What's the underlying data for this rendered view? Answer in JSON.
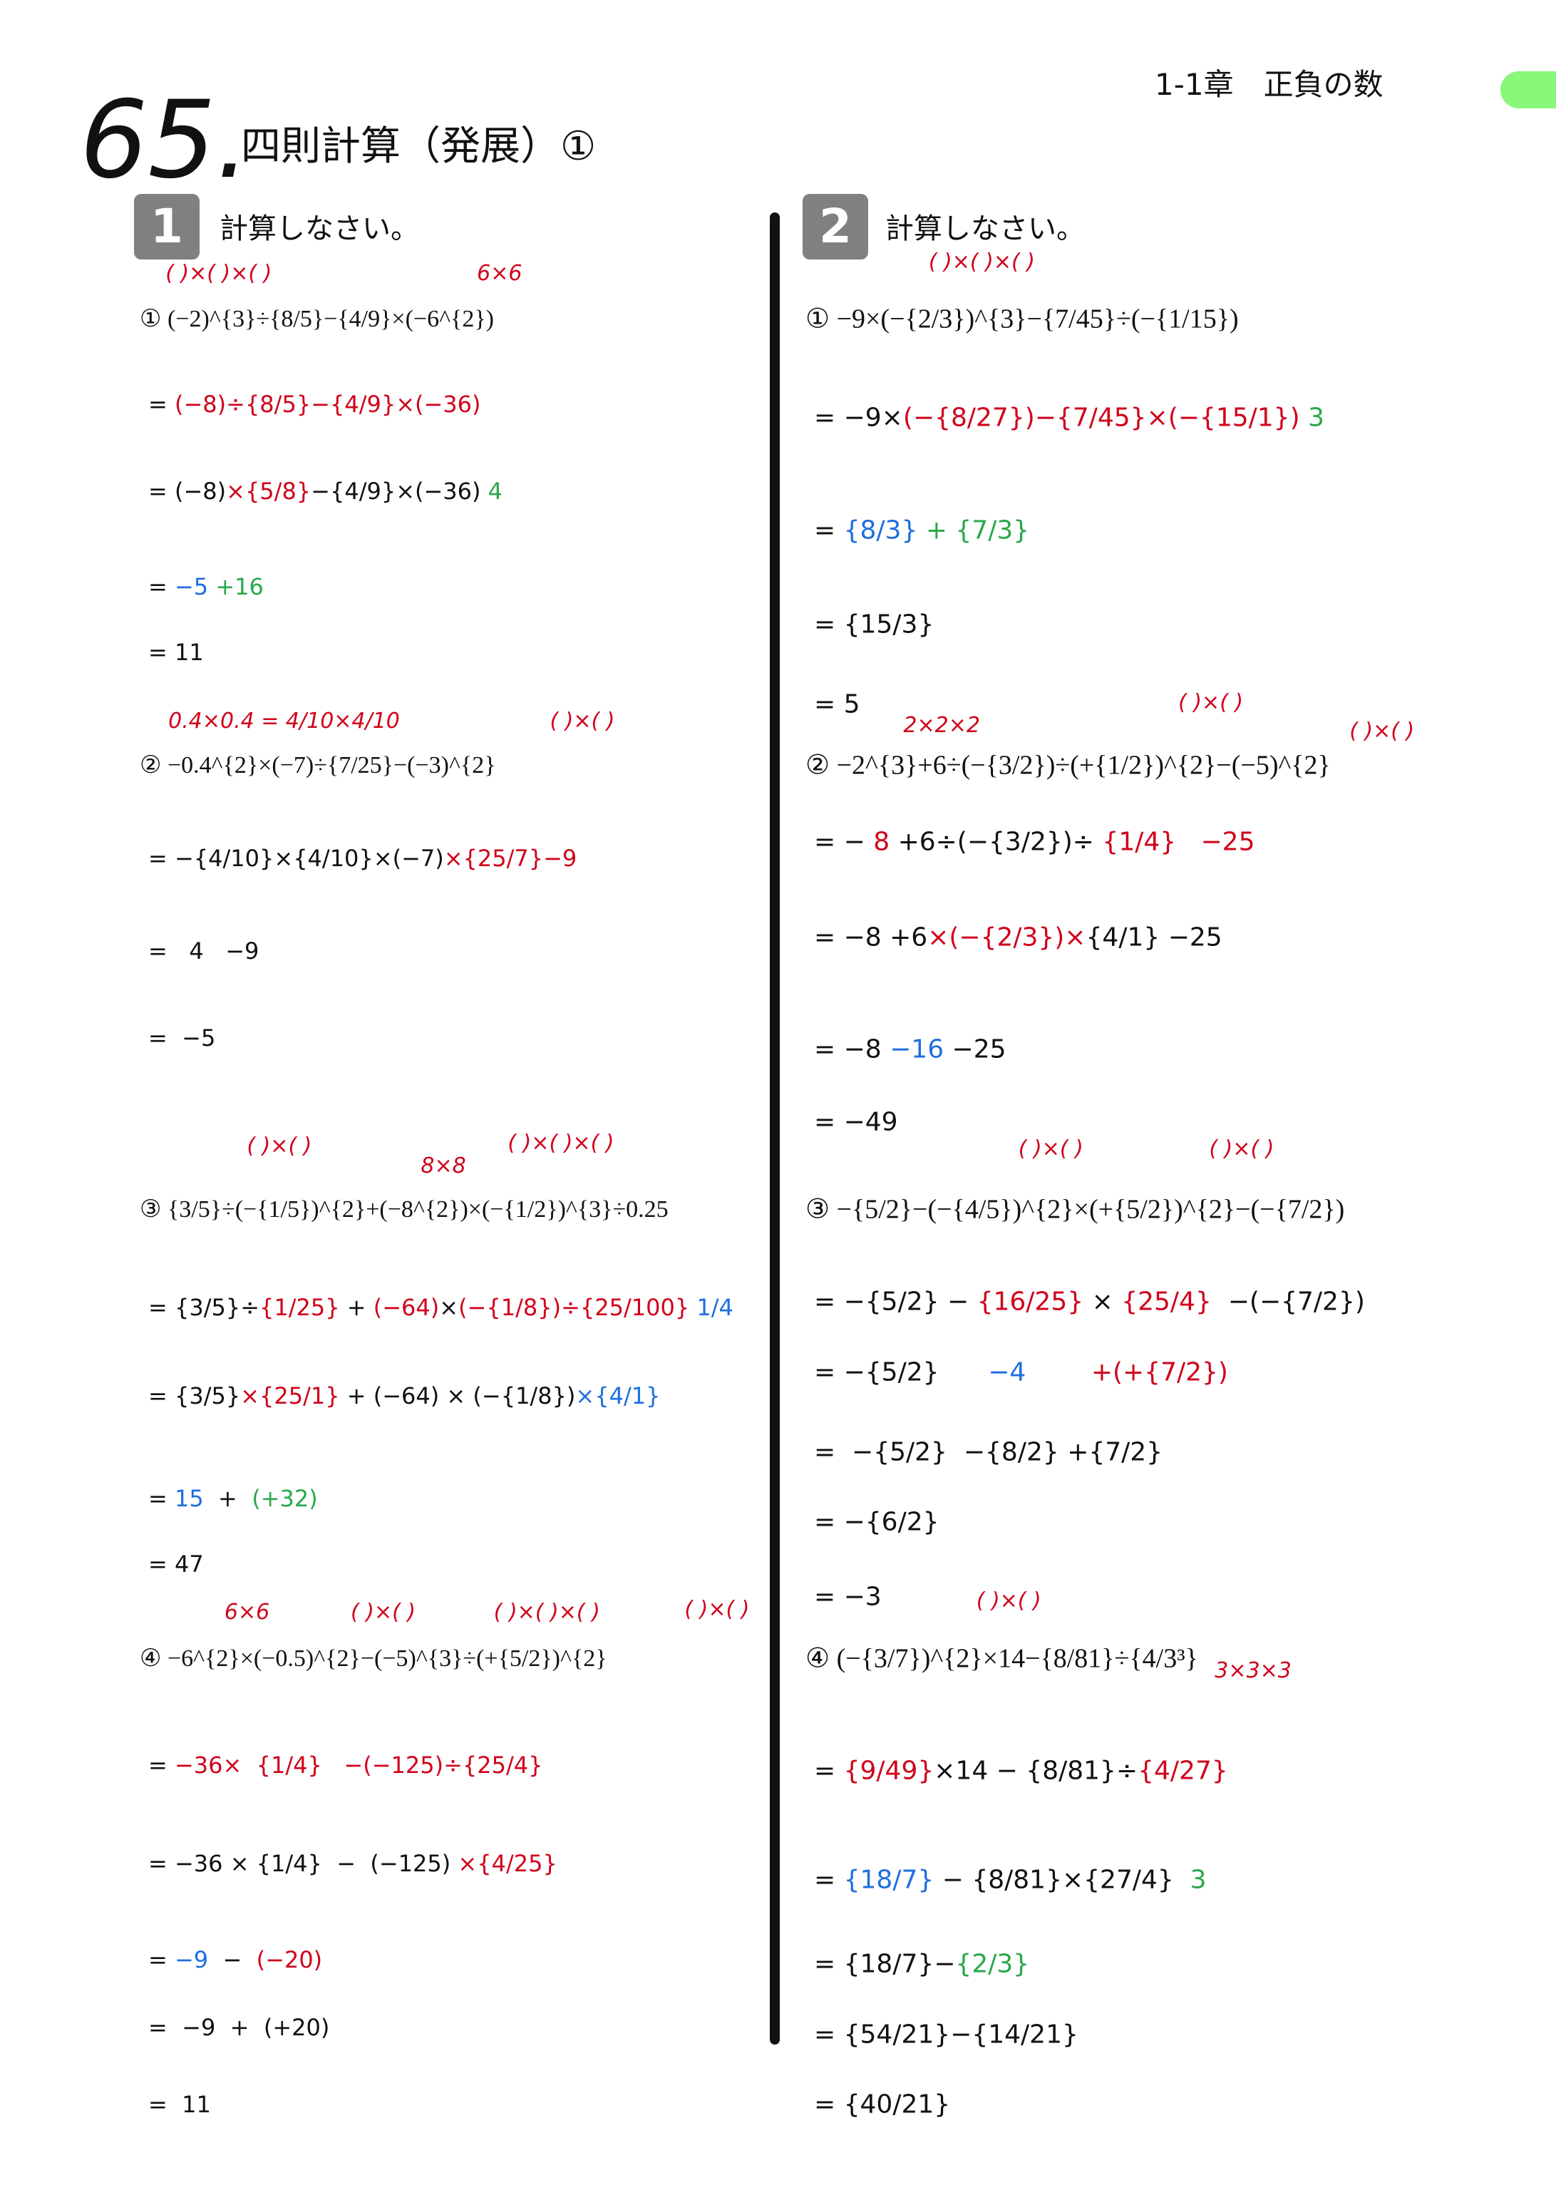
{
  "header": {
    "number": "65.",
    "title": "四則計算（発展）①",
    "chapter": "1-1章　正負の数"
  },
  "colors": {
    "k": "#111111",
    "r": "#d0021b",
    "b": "#1e6fe0",
    "g": "#2aa84a",
    "tab": "#88f77a",
    "highlight": "#f7a8a8"
  },
  "sections": [
    {
      "badge": "1",
      "instruction": "計算しなさい。"
    },
    {
      "badge": "2",
      "instruction": "計算しなさい。"
    }
  ],
  "left": [
    {
      "segs": [
        [
          "k",
          "① (−2)^{3}÷{8/5}−{4/9}×(−6^{2})"
        ]
      ]
    },
    {
      "segs": [
        [
          "k",
          "= "
        ],
        [
          "r",
          "(−8)÷{8/5}−{4/9}×(−36)"
        ]
      ]
    },
    {
      "segs": [
        [
          "k",
          "= (−8)"
        ],
        [
          "r",
          "×{5/8}"
        ],
        [
          "k",
          "−{4/9}×(−36)"
        ],
        [
          "g",
          " 4"
        ]
      ]
    },
    {
      "segs": [
        [
          "k",
          "= "
        ],
        [
          "b",
          "−5 "
        ],
        [
          "g",
          "+16"
        ]
      ]
    },
    {
      "segs": [
        [
          "k",
          "= 11"
        ]
      ]
    },
    {
      "segs": [
        [
          "k",
          "② −0.4^{2}×(−7)÷{7/25}−(−3)^{2}"
        ]
      ]
    },
    {
      "segs": [
        [
          "k",
          "= −{4/10}×{4/10}×(−7)"
        ],
        [
          "r",
          "×{25/7}−9"
        ]
      ]
    },
    {
      "segs": [
        [
          "k",
          "=   4   −9"
        ]
      ]
    },
    {
      "segs": [
        [
          "k",
          "=  −5"
        ]
      ]
    },
    {
      "segs": [
        [
          "k",
          "③ {3/5}÷(−{1/5})^{2}+(−8^{2})×(−{1/2})^{3}÷0.25"
        ]
      ]
    },
    {
      "segs": [
        [
          "k",
          "= {3/5}÷"
        ],
        [
          "r",
          "{1/25}"
        ],
        [
          "k",
          " + "
        ],
        [
          "r",
          "(−64)"
        ],
        [
          "k",
          "×"
        ],
        [
          "r",
          "(−{1/8})÷{25/100}"
        ],
        [
          "b",
          " 1/4"
        ]
      ]
    },
    {
      "segs": [
        [
          "k",
          "= {3/5}"
        ],
        [
          "r",
          "×{25/1}"
        ],
        [
          "k",
          " + (−64) × (−{1/8})"
        ],
        [
          "b",
          "×{4/1}"
        ]
      ]
    },
    {
      "segs": [
        [
          "k",
          "= "
        ],
        [
          "b",
          "15"
        ],
        [
          "k",
          "  +  "
        ],
        [
          "g",
          "(+32)"
        ]
      ]
    },
    {
      "segs": [
        [
          "k",
          "= 47"
        ]
      ]
    },
    {
      "segs": [
        [
          "k",
          "④ −6^{2}×(−0.5)^{2}−(−5)^{3}÷(+{5/2})^{2}"
        ]
      ]
    },
    {
      "segs": [
        [
          "k",
          "= "
        ],
        [
          "r",
          "−36×  {1/4}   −(−125)÷{25/4}"
        ]
      ]
    },
    {
      "segs": [
        [
          "k",
          "= −36 × {1/4}  −  (−125)"
        ],
        [
          "r",
          " ×{4/25}"
        ]
      ]
    },
    {
      "segs": [
        [
          "k",
          "= "
        ],
        [
          "b",
          "−9"
        ],
        [
          "k",
          "  −  "
        ],
        [
          "r",
          "(−20)"
        ]
      ]
    },
    {
      "segs": [
        [
          "k",
          "=  −9  +  (+20)"
        ]
      ]
    },
    {
      "segs": [
        [
          "k",
          "=  11"
        ]
      ]
    }
  ],
  "right": [
    {
      "segs": [
        [
          "k",
          "① −9×(−{2/3})^{3}−{7/45}÷(−{1/15})"
        ]
      ]
    },
    {
      "segs": [
        [
          "k",
          "= −9×"
        ],
        [
          "r",
          "(−{8/27})−{7/45}×(−{15/1})"
        ],
        [
          "g",
          " 3"
        ]
      ]
    },
    {
      "segs": [
        [
          "k",
          "= "
        ],
        [
          "b",
          "{8/3}"
        ],
        [
          "g",
          " + {7/3}"
        ]
      ]
    },
    {
      "segs": [
        [
          "k",
          "= {15/3}"
        ]
      ]
    },
    {
      "segs": [
        [
          "k",
          "= 5"
        ]
      ]
    },
    {
      "segs": [
        [
          "k",
          "② −2^{3}+6÷(−{3/2})÷(+{1/2})^{2}−(−5)^{2}"
        ]
      ]
    },
    {
      "segs": [
        [
          "k",
          "= −"
        ],
        [
          "r",
          " 8 "
        ],
        [
          "k",
          "+6÷(−{3/2})÷ "
        ],
        [
          "r",
          "{1/4}   −25"
        ]
      ]
    },
    {
      "segs": [
        [
          "k",
          "= −8 +6"
        ],
        [
          "r",
          "×(−{2/3})×"
        ],
        [
          "k",
          "{4/1} −25"
        ]
      ]
    },
    {
      "segs": [
        [
          "k",
          "= −8 "
        ],
        [
          "b",
          "−16"
        ],
        [
          "k",
          " −25"
        ]
      ]
    },
    {
      "segs": [
        [
          "k",
          "= −49"
        ]
      ]
    },
    {
      "segs": [
        [
          "k",
          "③ −{5/2}−(−{4/5})^{2}×(+{5/2})^{2}−(−{7/2})"
        ]
      ]
    },
    {
      "segs": [
        [
          "k",
          "= −{5/2} − "
        ],
        [
          "r",
          "{16/25}"
        ],
        [
          "k",
          " × "
        ],
        [
          "r",
          "{25/4}"
        ],
        [
          "k",
          "  −(−{7/2})"
        ]
      ]
    },
    {
      "segs": [
        [
          "k",
          "= −{5/2}      "
        ],
        [
          "b",
          "−4"
        ],
        [
          "r",
          "        +(+{7/2})"
        ]
      ]
    },
    {
      "segs": [
        [
          "k",
          "=  −{5/2}  −{8/2} +{7/2}"
        ]
      ]
    },
    {
      "segs": [
        [
          "k",
          "= −{6/2}"
        ]
      ]
    },
    {
      "segs": [
        [
          "k",
          "= −3"
        ]
      ]
    },
    {
      "segs": [
        [
          "k",
          "④ (−{3/7})^{2}×14−{8/81}÷{4/3³}"
        ]
      ]
    },
    {
      "segs": [
        [
          "k",
          "= "
        ],
        [
          "r",
          "{9/49}"
        ],
        [
          "k",
          "×14 − {8/81}÷"
        ],
        [
          "r",
          "{4/27}"
        ]
      ]
    },
    {
      "segs": [
        [
          "k",
          "= "
        ],
        [
          "b",
          "{18/7}"
        ],
        [
          "k",
          " − {8/81}×{27/4}"
        ],
        [
          "g",
          "  3"
        ]
      ]
    },
    {
      "segs": [
        [
          "k",
          "= {18/7}−"
        ],
        [
          "g",
          "{2/3}"
        ]
      ]
    },
    {
      "segs": [
        [
          "k",
          "= {54/21}−{14/21}"
        ]
      ]
    },
    {
      "segs": [
        [
          "k",
          "= {40/21}"
        ]
      ]
    }
  ],
  "annotations": [
    "( )×( )×( )",
    "6×6",
    "0.4×0.4 = 4/10×4/10",
    "( )×( )",
    "( )×( )",
    "8×8",
    "( )×( )×( )",
    "6×6",
    "( )×( )",
    "( )×( )×( )",
    "( )×( )",
    "( )×( )×( )",
    "2×2×2",
    "( )×( )",
    "( )×( )",
    "( )×( )",
    "( )×( )",
    "( )×( )",
    "3×3×3"
  ]
}
